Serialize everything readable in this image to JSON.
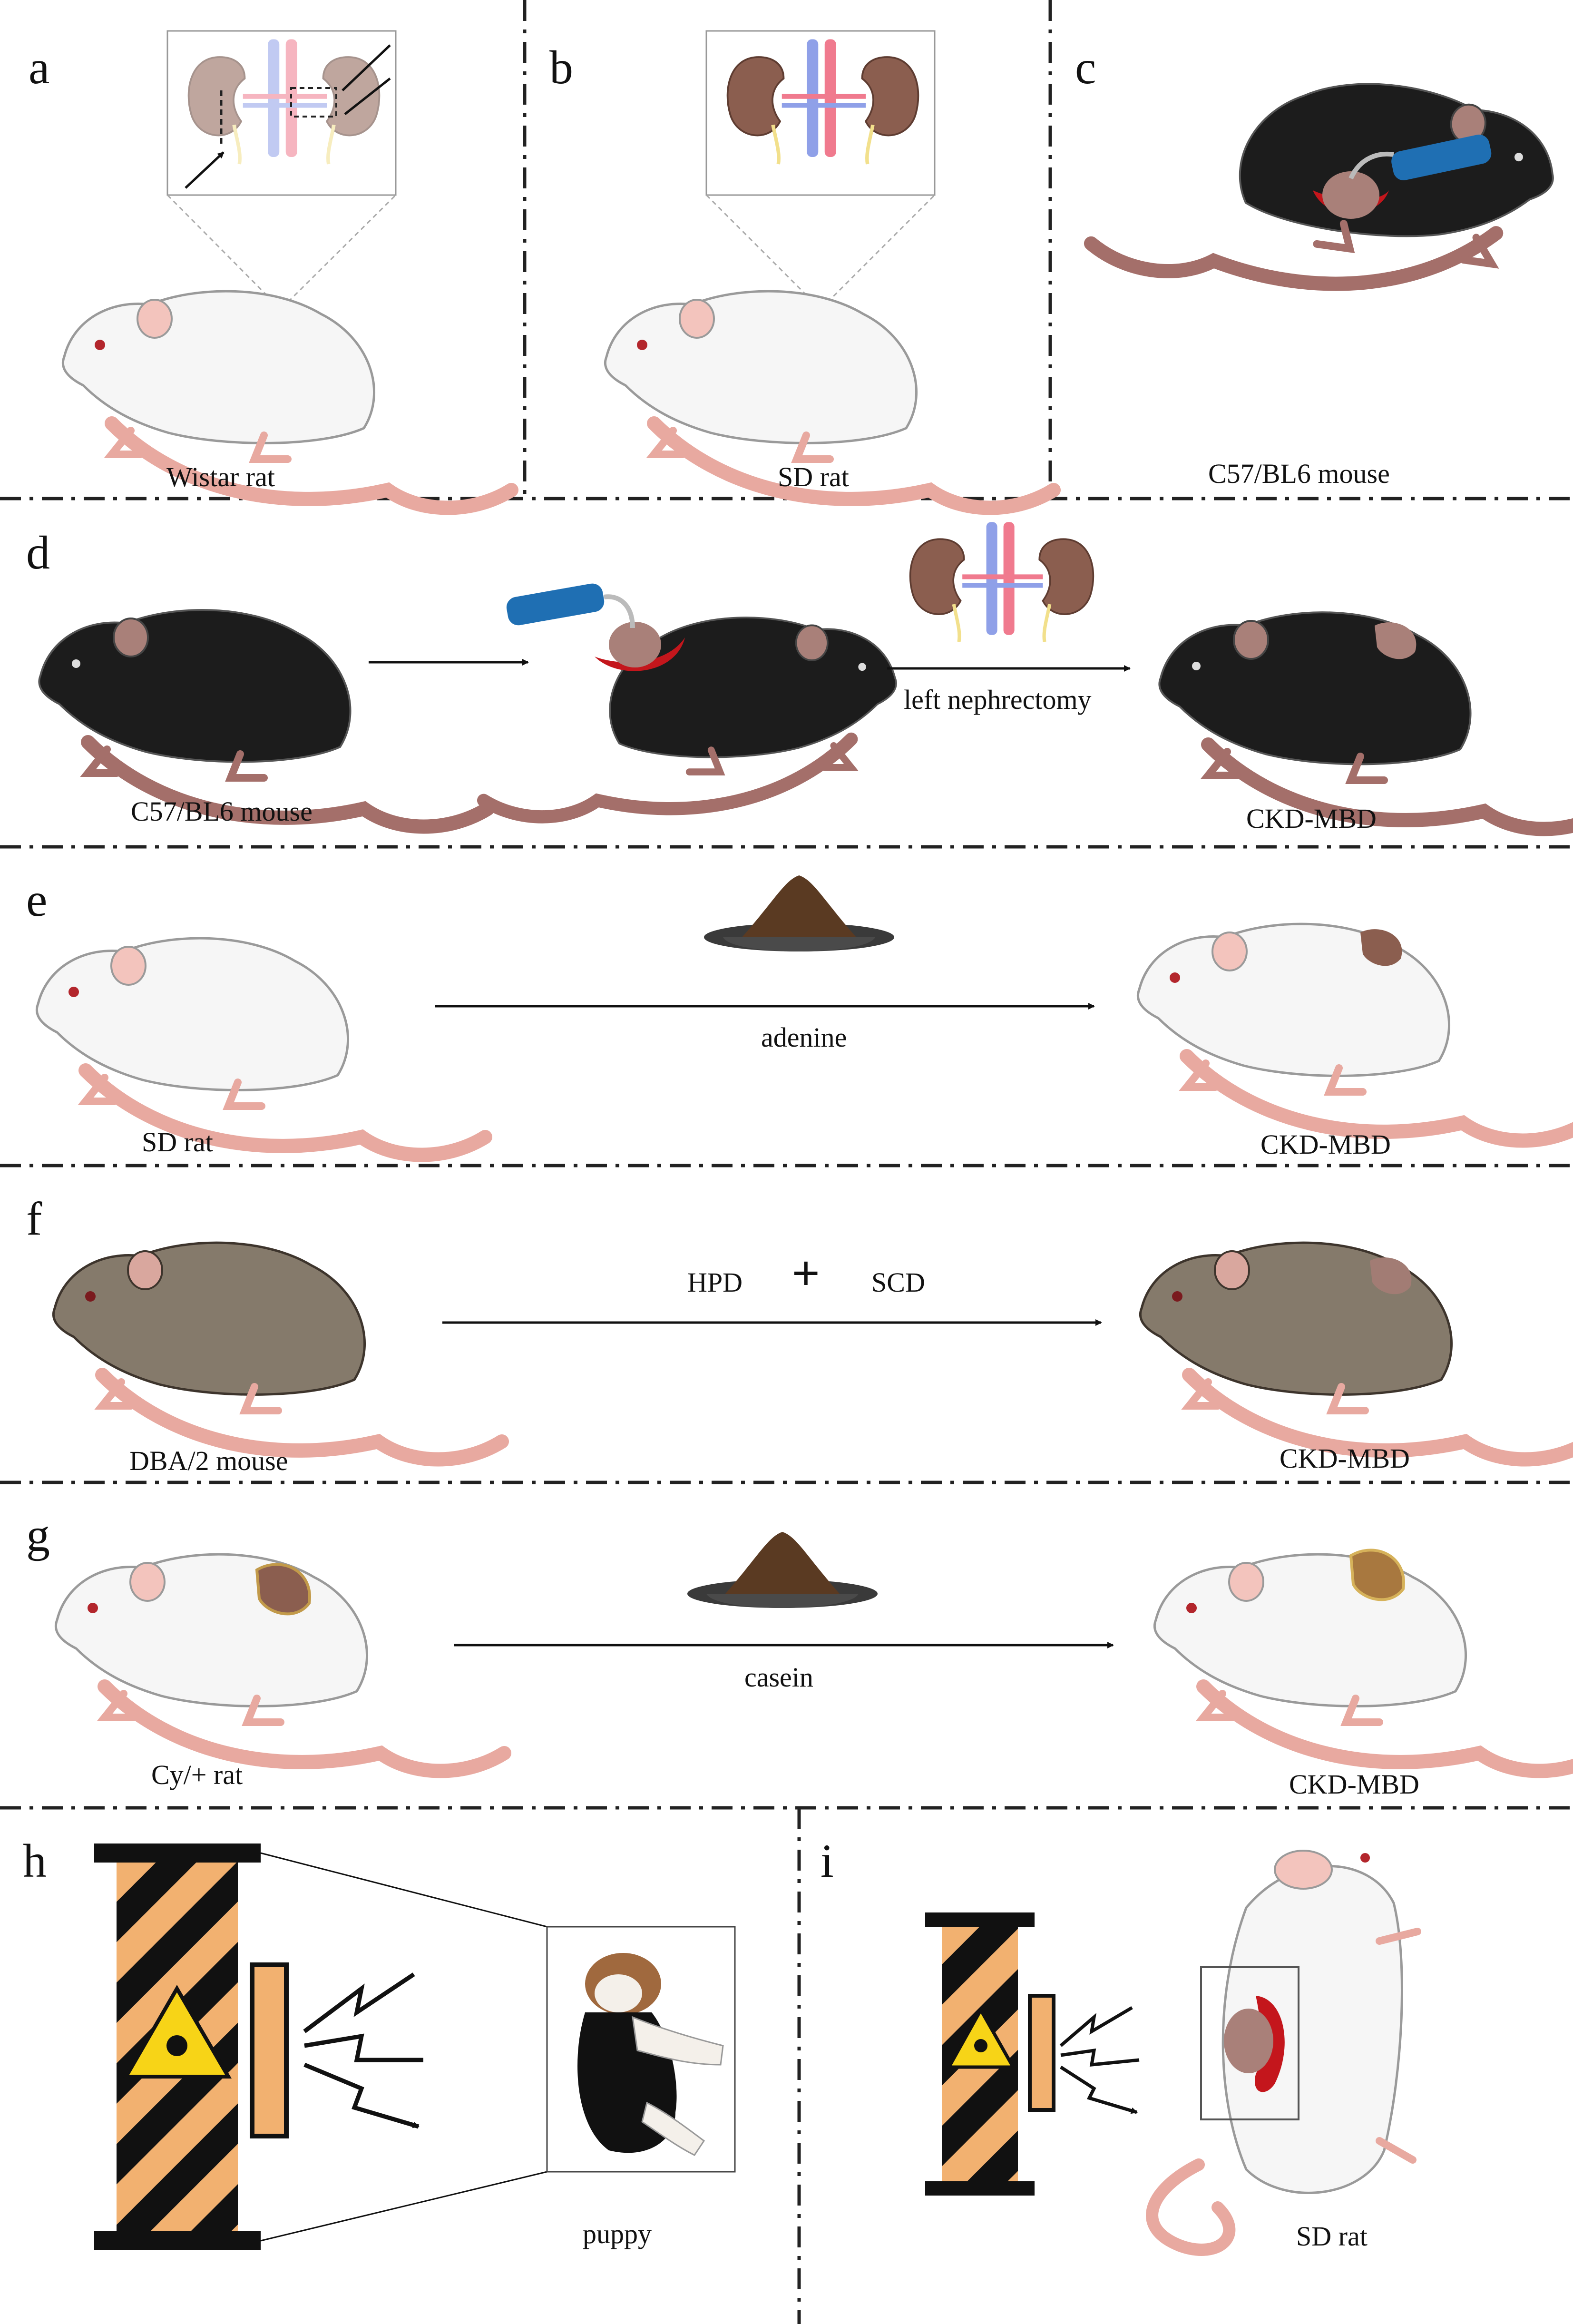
{
  "panels": {
    "a": {
      "label": "a",
      "caption": "Wistar rat"
    },
    "b": {
      "label": "b",
      "caption": "SD rat"
    },
    "c": {
      "label": "c",
      "caption": "C57/BL6 mouse"
    },
    "d": {
      "label": "d",
      "caption_start": "C57/BL6 mouse",
      "step": "left nephrectomy",
      "caption_end": "CKD-MBD"
    },
    "e": {
      "label": "e",
      "caption_start": "SD rat",
      "step": "adenine",
      "caption_end": "CKD-MBD"
    },
    "f": {
      "label": "f",
      "caption_start": "DBA/2 mouse",
      "step_a": "HPD",
      "plus": "+",
      "step_b": "SCD",
      "caption_end": "CKD-MBD"
    },
    "g": {
      "label": "g",
      "caption_start": "Cy/+ rat",
      "step": "casein",
      "caption_end": "CKD-MBD"
    },
    "h": {
      "label": "h",
      "caption": "puppy"
    },
    "i": {
      "label": "i",
      "caption": "SD rat"
    }
  },
  "colors": {
    "white_rat": "#f6f6f6",
    "black_mouse": "#1c1c1c",
    "brown_mouse": "#857a6b",
    "tail": "#e8a9a0",
    "kidney": "#8b5e4f",
    "vein": "#8fa0e8",
    "artery": "#f07a8e",
    "wound": "#c4161c",
    "hazard_orange": "#f2b170",
    "hazard_yellow": "#f7d417",
    "probe_blue": "#1f6fb3",
    "diet": "#5a3a22"
  }
}
